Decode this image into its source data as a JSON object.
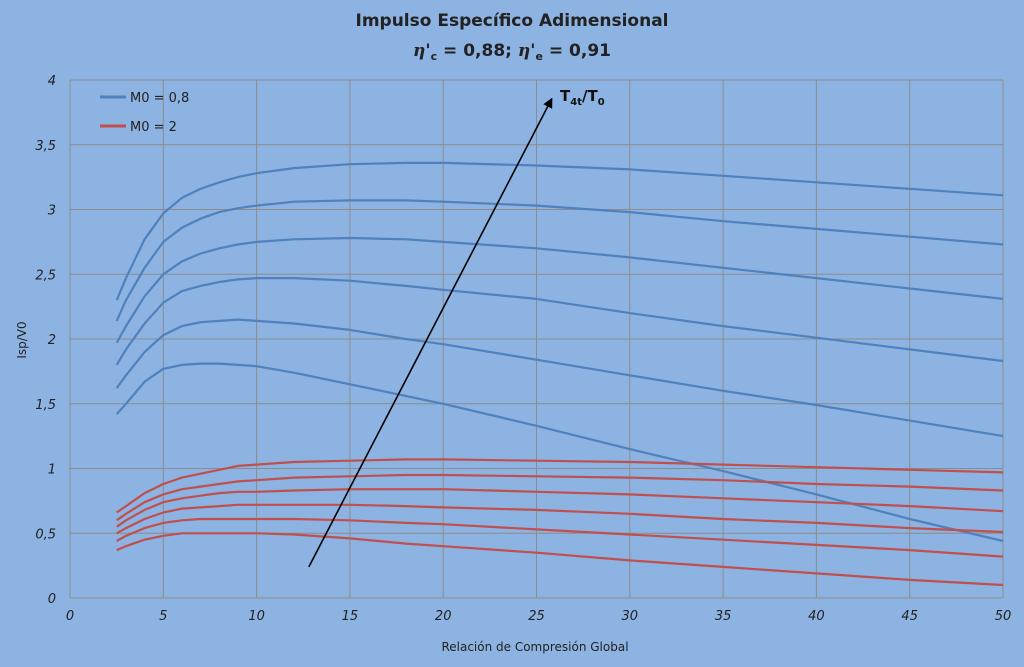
{
  "chart_data": {
    "type": "line",
    "title": "Impulso Específico Adimensional",
    "subtitle": {
      "eta": "η",
      "prime": "'",
      "sub_c": "c",
      "sub_e": "e",
      "eq_c": " = 0,88; ",
      "eq_e": " = 0,91"
    },
    "xlabel": "Relación de Compresión Global",
    "ylabel": "Isp/V0",
    "xlim": [
      0,
      50
    ],
    "ylim": [
      0,
      4
    ],
    "xticks": [
      "0",
      "5",
      "10",
      "15",
      "20",
      "25",
      "30",
      "35",
      "40",
      "45",
      "50"
    ],
    "yticks": [
      "0",
      "0,5",
      "1",
      "1,5",
      "2",
      "2,5",
      "3",
      "3,5",
      "4"
    ],
    "grid": true,
    "legend_position": "top-left",
    "legend": [
      {
        "label": "M0 = 0,8",
        "color": "#4f81bd"
      },
      {
        "label": "M0 = 2",
        "color": "#c0504d"
      }
    ],
    "annotation": {
      "base": "T",
      "sub": "4t",
      "slash": "/T",
      "sub2": "0",
      "from": [
        12.8,
        0.24
      ],
      "to": [
        25.8,
        3.85
      ]
    },
    "x": [
      2.5,
      3,
      4,
      5,
      6,
      7,
      8,
      9,
      10,
      12,
      15,
      18,
      20,
      25,
      30,
      35,
      40,
      45,
      50
    ],
    "series": [
      {
        "group": "M0 = 0,8",
        "color": "#4f81bd",
        "values": [
          1.42,
          1.5,
          1.67,
          1.77,
          1.8,
          1.81,
          1.81,
          1.8,
          1.79,
          1.74,
          1.65,
          1.56,
          1.5,
          1.33,
          1.15,
          0.98,
          0.8,
          0.61,
          0.44
        ]
      },
      {
        "group": "M0 = 0,8",
        "color": "#4f81bd",
        "values": [
          1.62,
          1.72,
          1.9,
          2.03,
          2.1,
          2.13,
          2.14,
          2.15,
          2.14,
          2.12,
          2.07,
          2.0,
          1.96,
          1.84,
          1.72,
          1.6,
          1.49,
          1.37,
          1.25
        ]
      },
      {
        "group": "M0 = 0,8",
        "color": "#4f81bd",
        "values": [
          1.8,
          1.92,
          2.12,
          2.28,
          2.37,
          2.41,
          2.44,
          2.46,
          2.47,
          2.47,
          2.45,
          2.41,
          2.38,
          2.31,
          2.2,
          2.1,
          2.01,
          1.92,
          1.83
        ]
      },
      {
        "group": "M0 = 0,8",
        "color": "#4f81bd",
        "values": [
          1.97,
          2.1,
          2.33,
          2.5,
          2.6,
          2.66,
          2.7,
          2.73,
          2.75,
          2.77,
          2.78,
          2.77,
          2.75,
          2.7,
          2.63,
          2.55,
          2.47,
          2.39,
          2.31
        ]
      },
      {
        "group": "M0 = 0,8",
        "color": "#4f81bd",
        "values": [
          2.14,
          2.3,
          2.55,
          2.75,
          2.86,
          2.93,
          2.98,
          3.01,
          3.03,
          3.06,
          3.07,
          3.07,
          3.06,
          3.03,
          2.98,
          2.91,
          2.85,
          2.79,
          2.73
        ]
      },
      {
        "group": "M0 = 0,8",
        "color": "#4f81bd",
        "values": [
          2.3,
          2.47,
          2.77,
          2.97,
          3.09,
          3.16,
          3.21,
          3.25,
          3.28,
          3.32,
          3.35,
          3.36,
          3.36,
          3.34,
          3.31,
          3.26,
          3.21,
          3.16,
          3.11
        ]
      },
      {
        "group": "M0 = 2",
        "color": "#c0504d",
        "values": [
          0.37,
          0.4,
          0.45,
          0.48,
          0.5,
          0.5,
          0.5,
          0.5,
          0.5,
          0.49,
          0.46,
          0.42,
          0.4,
          0.35,
          0.29,
          0.24,
          0.19,
          0.14,
          0.1
        ]
      },
      {
        "group": "M0 = 2",
        "color": "#c0504d",
        "values": [
          0.44,
          0.48,
          0.54,
          0.58,
          0.6,
          0.61,
          0.61,
          0.61,
          0.61,
          0.61,
          0.6,
          0.58,
          0.57,
          0.53,
          0.49,
          0.45,
          0.41,
          0.37,
          0.32
        ]
      },
      {
        "group": "M0 = 2",
        "color": "#c0504d",
        "values": [
          0.5,
          0.54,
          0.61,
          0.66,
          0.69,
          0.7,
          0.71,
          0.72,
          0.72,
          0.72,
          0.72,
          0.71,
          0.7,
          0.68,
          0.65,
          0.61,
          0.58,
          0.54,
          0.51
        ]
      },
      {
        "group": "M0 = 2",
        "color": "#c0504d",
        "values": [
          0.55,
          0.6,
          0.68,
          0.74,
          0.77,
          0.79,
          0.81,
          0.82,
          0.82,
          0.83,
          0.84,
          0.84,
          0.84,
          0.82,
          0.8,
          0.77,
          0.74,
          0.71,
          0.67
        ]
      },
      {
        "group": "M0 = 2",
        "color": "#c0504d",
        "values": [
          0.6,
          0.65,
          0.74,
          0.8,
          0.84,
          0.86,
          0.88,
          0.9,
          0.91,
          0.93,
          0.94,
          0.95,
          0.95,
          0.94,
          0.93,
          0.91,
          0.88,
          0.86,
          0.83
        ]
      },
      {
        "group": "M0 = 2",
        "color": "#c0504d",
        "values": [
          0.66,
          0.71,
          0.81,
          0.88,
          0.93,
          0.96,
          0.99,
          1.02,
          1.03,
          1.05,
          1.06,
          1.07,
          1.07,
          1.06,
          1.05,
          1.03,
          1.01,
          0.99,
          0.97
        ]
      }
    ]
  }
}
